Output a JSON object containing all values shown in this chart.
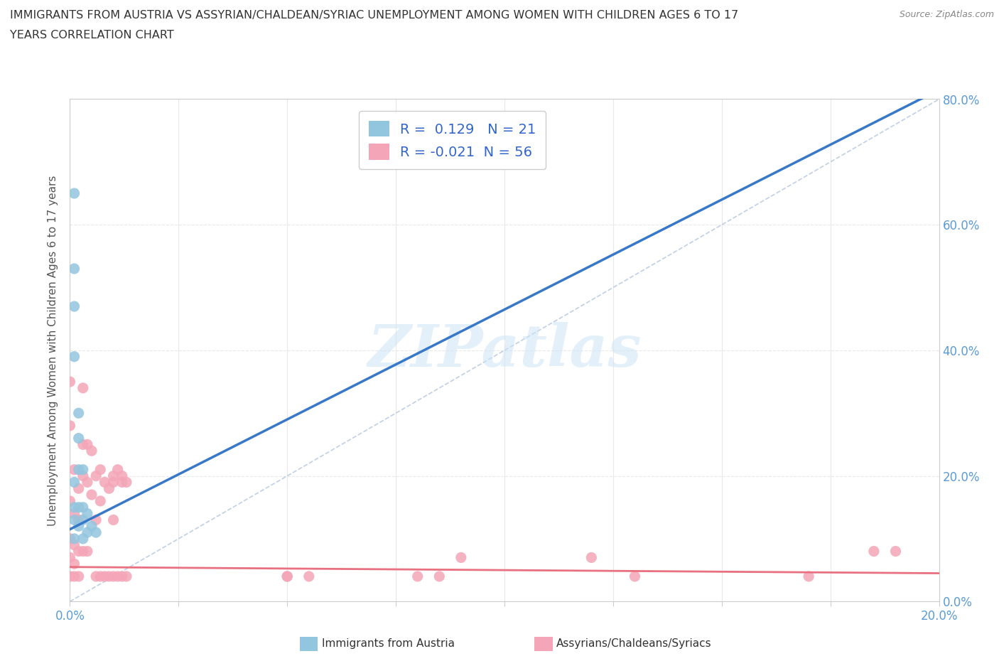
{
  "title_line1": "IMMIGRANTS FROM AUSTRIA VS ASSYRIAN/CHALDEAN/SYRIAC UNEMPLOYMENT AMONG WOMEN WITH CHILDREN AGES 6 TO 17",
  "title_line2": "YEARS CORRELATION CHART",
  "source_text": "Source: ZipAtlas.com",
  "ylabel": "Unemployment Among Women with Children Ages 6 to 17 years",
  "xlim": [
    0,
    0.2
  ],
  "ylim": [
    0,
    0.8
  ],
  "ytick_labels_right": [
    "0.0%",
    "20.0%",
    "40.0%",
    "60.0%",
    "80.0%"
  ],
  "watermark": "ZIPatlas",
  "series1_name": "Immigrants from Austria",
  "series1_color": "#92c5de",
  "series1_R": 0.129,
  "series1_N": 21,
  "series2_name": "Assyrians/Chaldeans/Syriacs",
  "series2_color": "#f4a6b8",
  "series2_R": -0.021,
  "series2_N": 56,
  "series1_x": [
    0.001,
    0.001,
    0.001,
    0.001,
    0.001,
    0.001,
    0.001,
    0.001,
    0.002,
    0.002,
    0.002,
    0.002,
    0.002,
    0.003,
    0.003,
    0.003,
    0.003,
    0.004,
    0.004,
    0.005,
    0.006
  ],
  "series1_y": [
    0.65,
    0.53,
    0.47,
    0.39,
    0.19,
    0.15,
    0.13,
    0.1,
    0.3,
    0.26,
    0.21,
    0.15,
    0.12,
    0.21,
    0.15,
    0.13,
    0.1,
    0.14,
    0.11,
    0.12,
    0.11
  ],
  "series2_x": [
    0.0,
    0.0,
    0.0,
    0.0,
    0.0,
    0.0,
    0.001,
    0.001,
    0.001,
    0.001,
    0.001,
    0.002,
    0.002,
    0.002,
    0.002,
    0.003,
    0.003,
    0.003,
    0.003,
    0.004,
    0.004,
    0.004,
    0.005,
    0.005,
    0.006,
    0.006,
    0.006,
    0.007,
    0.007,
    0.007,
    0.008,
    0.008,
    0.009,
    0.009,
    0.01,
    0.01,
    0.01,
    0.01,
    0.011,
    0.011,
    0.012,
    0.012,
    0.012,
    0.013,
    0.013,
    0.05,
    0.05,
    0.055,
    0.08,
    0.085,
    0.09,
    0.12,
    0.13,
    0.17,
    0.185,
    0.19
  ],
  "series2_y": [
    0.35,
    0.28,
    0.16,
    0.1,
    0.07,
    0.04,
    0.21,
    0.14,
    0.09,
    0.06,
    0.04,
    0.18,
    0.13,
    0.08,
    0.04,
    0.34,
    0.25,
    0.2,
    0.08,
    0.25,
    0.19,
    0.08,
    0.24,
    0.17,
    0.2,
    0.13,
    0.04,
    0.21,
    0.16,
    0.04,
    0.19,
    0.04,
    0.18,
    0.04,
    0.2,
    0.19,
    0.13,
    0.04,
    0.21,
    0.04,
    0.2,
    0.19,
    0.04,
    0.19,
    0.04,
    0.04,
    0.04,
    0.04,
    0.04,
    0.04,
    0.07,
    0.07,
    0.04,
    0.04,
    0.08,
    0.08
  ],
  "background_color": "#ffffff",
  "grid_color": "#e8e8e8",
  "axis_color": "#cccccc",
  "tick_color": "#5b9bd5",
  "regression1_color": "#3878c8",
  "regression2_color": "#e87080",
  "regression1_intercept": 0.115,
  "regression1_slope": 3.5,
  "regression2_intercept": 0.055,
  "regression2_slope": -0.05
}
